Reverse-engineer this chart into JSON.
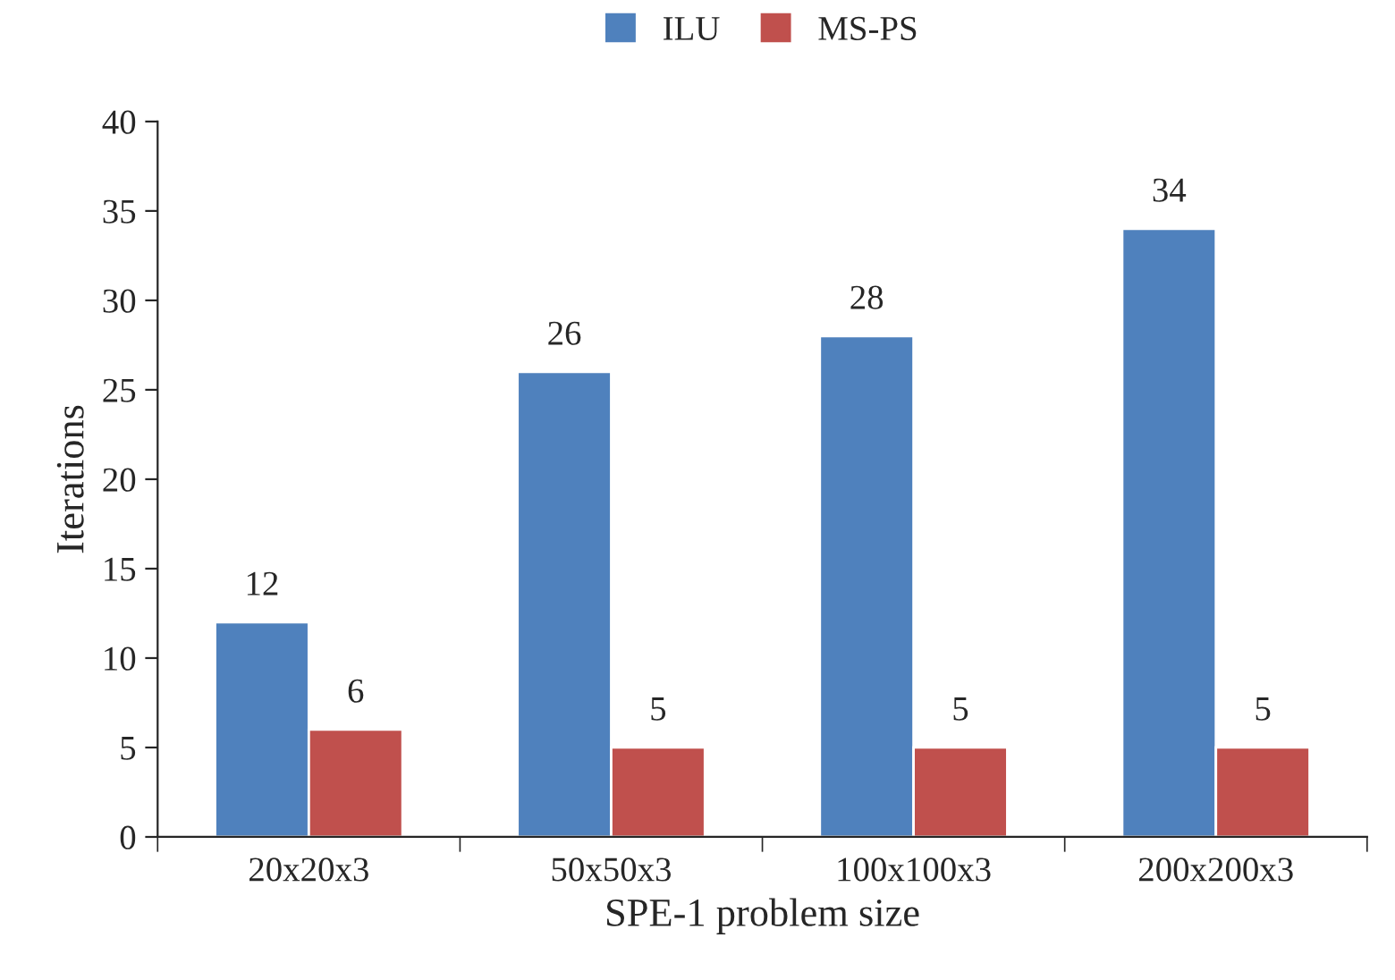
{
  "chart_data": {
    "type": "bar",
    "xlabel": "SPE-1 problem size",
    "ylabel": "Iterations",
    "categories": [
      "20x20x3",
      "50x50x3",
      "100x100x3",
      "200x200x3"
    ],
    "series": [
      {
        "name": "ILU",
        "color": "#4f81bd",
        "values": [
          12,
          26,
          28,
          34
        ]
      },
      {
        "name": "MS-PS",
        "color": "#c0504d",
        "values": [
          6,
          5,
          5,
          5
        ]
      }
    ],
    "ylim": [
      0,
      40
    ],
    "yticks": [
      0,
      5,
      10,
      15,
      20,
      25,
      30,
      35,
      40
    ],
    "data_labels": true,
    "legend": "top",
    "grid": false
  }
}
